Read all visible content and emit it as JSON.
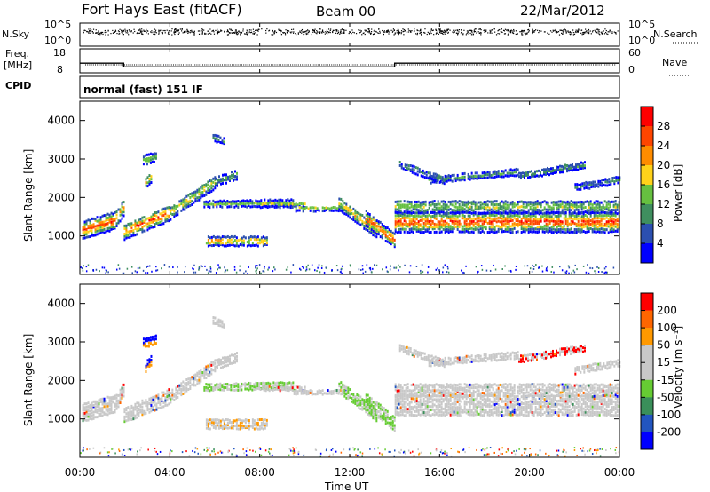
{
  "header": {
    "station": "Fort Hays East (fitACF)",
    "beam": "Beam 00",
    "date": "22/Mar/2012"
  },
  "labels": {
    "nsky": "N.Sky",
    "nsearch": "N.Search",
    "freq": "Freq.",
    "freq_unit": "[MHz]",
    "nave": "Nave",
    "cpid": "CPID",
    "mode": "normal (fast) 151 IF",
    "xlabel": "Time UT",
    "ylabel": "Slant Range [km]"
  },
  "noise_ticks_left": [
    "10^5",
    "10^0"
  ],
  "noise_ticks_right": [
    "10^5",
    "10^0"
  ],
  "freq_ticks_left": [
    "18",
    "8"
  ],
  "freq_ticks_right": [
    "60",
    "0"
  ],
  "colors": {
    "power": [
      "#0000ff",
      "#2b4fb0",
      "#3f8f5f",
      "#66c040",
      "#ffd21a",
      "#ff8c00",
      "#ff4500",
      "#ff0000"
    ],
    "velocity": [
      "#0000ff",
      "#2255c0",
      "#3a8f5a",
      "#66cc33",
      "#c8c8c8",
      "#c8c8c8",
      "#ff9900",
      "#ff6600",
      "#ff0000"
    ]
  },
  "colorbars": {
    "power": {
      "label": "Power [dB]",
      "ticks": [
        "28",
        "24",
        "20",
        "16",
        "12",
        "8",
        "4"
      ]
    },
    "velocity": {
      "label": "Velocity [m s⁻¹]",
      "ticks": [
        "200",
        "100",
        "50",
        "15",
        "-15",
        "-50",
        "-100",
        "-200"
      ]
    }
  },
  "chart_data": [
    {
      "type": "line",
      "name": "noise",
      "x_ticks": [
        "00:00",
        "04:00",
        "08:00",
        "12:00",
        "16:00",
        "20:00",
        "00:00"
      ],
      "note_series": [
        "N.Sky",
        "N.Search"
      ]
    },
    {
      "type": "line",
      "name": "frequency",
      "x": [
        0,
        1.95,
        1.95,
        14.0,
        14.0,
        24
      ],
      "y_mhz": [
        12,
        12,
        10.5,
        10.5,
        12,
        12
      ],
      "ylim": [
        8,
        18
      ]
    },
    {
      "type": "heatmap",
      "name": "power",
      "ylabel": "Slant Range [km]",
      "xlabel": "",
      "ylim": [
        0,
        4500
      ],
      "yticks": [
        1000,
        2000,
        3000,
        4000
      ],
      "xlim": [
        0,
        24
      ],
      "xticks": [
        "00:00",
        "04:00",
        "08:00",
        "12:00",
        "16:00",
        "20:00",
        "00:00"
      ]
    },
    {
      "type": "heatmap",
      "name": "velocity",
      "ylabel": "Slant Range [km]",
      "xlabel": "Time UT",
      "ylim": [
        0,
        4500
      ],
      "yticks": [
        1000,
        2000,
        3000,
        4000
      ],
      "xlim": [
        0,
        24
      ],
      "xticks": [
        "00:00",
        "04:00",
        "08:00",
        "12:00",
        "16:00",
        "20:00",
        "00:00"
      ]
    }
  ]
}
